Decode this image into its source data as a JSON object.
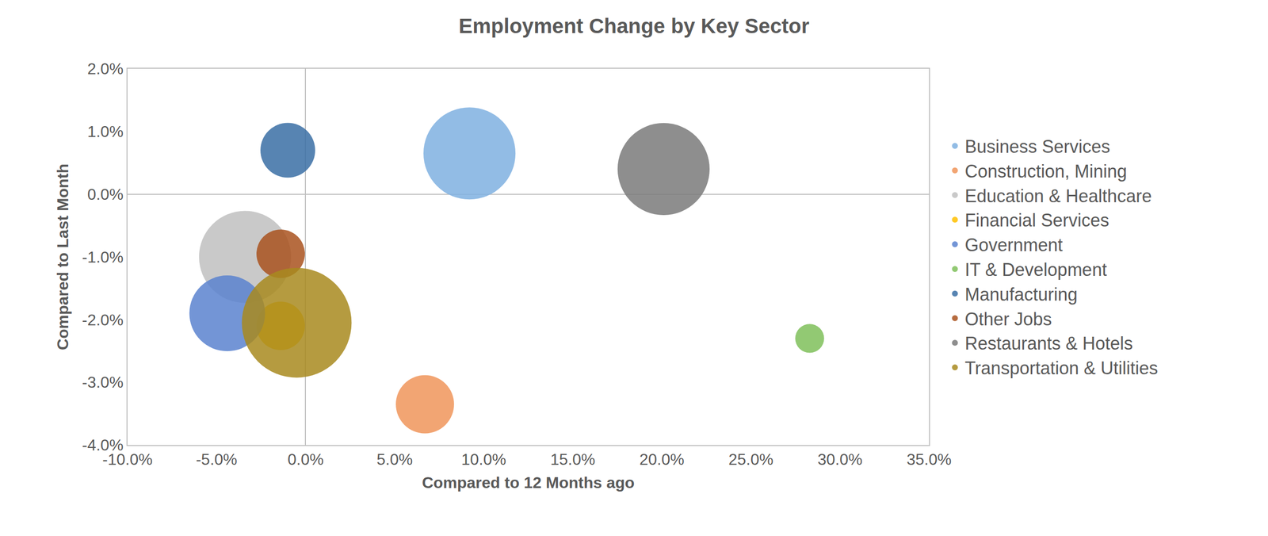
{
  "chart_data": {
    "type": "bubble",
    "title": "Employment Change by Key Sector",
    "x_label": "Compared to 12 Months ago",
    "y_label": "Compared to Last Month",
    "xlim": [
      -10,
      35
    ],
    "xticks": [
      {
        "value": -10,
        "label": "-10.0%"
      },
      {
        "value": -5,
        "label": "-5.0%"
      },
      {
        "value": 0,
        "label": "0.0%"
      },
      {
        "value": 5,
        "label": "5.0%"
      },
      {
        "value": 10,
        "label": "10.0%"
      },
      {
        "value": 15,
        "label": "15.0%"
      },
      {
        "value": 20,
        "label": "20.0%"
      },
      {
        "value": 25,
        "label": "25.0%"
      },
      {
        "value": 30,
        "label": "30.0%"
      },
      {
        "value": 35,
        "label": "35.0%"
      }
    ],
    "ylim": [
      -4,
      2
    ],
    "yticks": [
      {
        "value": -4,
        "label": "-4.0%"
      },
      {
        "value": -3,
        "label": "-3.0%"
      },
      {
        "value": -2,
        "label": "-2.0%"
      },
      {
        "value": -1,
        "label": "-1.0%"
      },
      {
        "value": 0,
        "label": "0.0%"
      },
      {
        "value": 1,
        "label": "1.0%"
      },
      {
        "value": 2,
        "label": "2.0%"
      }
    ],
    "grid": false,
    "legend": "right",
    "series": [
      {
        "name": "Business Services",
        "color": "#7fb0e0",
        "x": 9.2,
        "y": 0.65,
        "size": 3250
      },
      {
        "name": "Construction, Mining",
        "color": "#f0955a",
        "x": 6.7,
        "y": -3.35,
        "size": 1300
      },
      {
        "name": "Education & Healthcare",
        "color": "#bfbfbf",
        "x": -3.4,
        "y": -1.0,
        "size": 3250
      },
      {
        "name": "Financial Services",
        "color": "#ffc000",
        "x": -1.4,
        "y": -2.1,
        "size": 900
      },
      {
        "name": "Government",
        "color": "#5b82cf",
        "x": -4.4,
        "y": -1.9,
        "size": 2200
      },
      {
        "name": "IT & Development",
        "color": "#7fbf5a",
        "x": 28.3,
        "y": -2.3,
        "size": 320
      },
      {
        "name": "Manufacturing",
        "color": "#3a6ea5",
        "x": -1.0,
        "y": 0.7,
        "size": 1150
      },
      {
        "name": "Other Jobs",
        "color": "#a9521e",
        "x": -1.4,
        "y": -0.95,
        "size": 900
      },
      {
        "name": "Restaurants & Hotels",
        "color": "#7a7a7a",
        "x": 20.1,
        "y": 0.4,
        "size": 3250
      },
      {
        "name": "Transportation & Utilities",
        "color": "#a88a1e",
        "x": -0.5,
        "y": -2.05,
        "size": 4620
      }
    ]
  }
}
